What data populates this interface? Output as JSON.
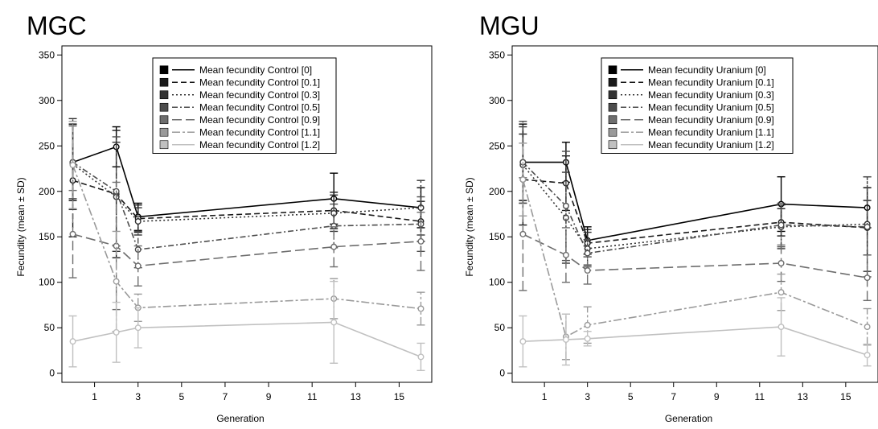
{
  "chart_data": [
    {
      "type": "line",
      "title": "MGC",
      "xlabel": "Generation",
      "ylabel": "Fecundity (mean ± SD)",
      "xlim": [
        -0.5,
        16.5
      ],
      "ylim": [
        -10,
        360
      ],
      "xticks": [
        1,
        3,
        5,
        7,
        9,
        11,
        13,
        15
      ],
      "yticks": [
        0,
        50,
        100,
        150,
        200,
        250,
        300,
        350
      ],
      "grid": false,
      "legend_position": "top-right",
      "x": [
        0,
        2,
        3,
        12,
        16
      ],
      "series": [
        {
          "name": "Mean fecundity Control [0]",
          "color": "#000000",
          "dash": "solid",
          "values": [
            232,
            249,
            172,
            192,
            182
          ],
          "sd": [
            42,
            22,
            15,
            28,
            22
          ]
        },
        {
          "name": "Mean fecundity Control [0.1]",
          "color": "#1a1a1a",
          "dash": "dashed",
          "values": [
            212,
            197,
            170,
            179,
            167
          ],
          "sd": [
            62,
            70,
            15,
            20,
            22
          ]
        },
        {
          "name": "Mean fecundity Control [0.3]",
          "color": "#333333",
          "dash": "dotted",
          "values": [
            230,
            194,
            167,
            176,
            182
          ],
          "sd": [
            50,
            60,
            15,
            20,
            30
          ]
        },
        {
          "name": "Mean fecundity Control [0.5]",
          "color": "#4d4d4d",
          "dash": "dashdot",
          "values": [
            232,
            200,
            136,
            162,
            164
          ],
          "sd": [
            40,
            60,
            20,
            24,
            30
          ]
        },
        {
          "name": "Mean fecundity Control [0.9]",
          "color": "#6e6e6e",
          "dash": "longdash",
          "values": [
            153,
            140,
            118,
            139,
            145
          ],
          "sd": [
            48,
            70,
            22,
            22,
            32
          ]
        },
        {
          "name": "Mean fecundity Control [1.1]",
          "color": "#9a9a9a",
          "dash": "twodash",
          "values": [
            229,
            101,
            72,
            82,
            71
          ],
          "sd": [
            48,
            55,
            15,
            22,
            18
          ]
        },
        {
          "name": "Mean fecundity Control [1.2]",
          "color": "#c0c0c0",
          "dash": "solid",
          "values": [
            35,
            45,
            50,
            56,
            18
          ],
          "sd": [
            28,
            33,
            22,
            45,
            15
          ]
        }
      ]
    },
    {
      "type": "line",
      "title": "MGU",
      "xlabel": "Generation",
      "ylabel": "Fecundity (mean ± SD)",
      "xlim": [
        -0.5,
        16.5
      ],
      "ylim": [
        -10,
        360
      ],
      "xticks": [
        1,
        3,
        5,
        7,
        9,
        11,
        13,
        15
      ],
      "yticks": [
        0,
        50,
        100,
        150,
        200,
        250,
        300,
        350
      ],
      "grid": false,
      "legend_position": "top-right",
      "x": [
        0,
        2,
        3,
        12,
        16
      ],
      "series": [
        {
          "name": "Mean fecundity Uranium [0]",
          "color": "#000000",
          "dash": "solid",
          "values": [
            232,
            232,
            146,
            186,
            182
          ],
          "sd": [
            42,
            22,
            15,
            30,
            22
          ]
        },
        {
          "name": "Mean fecundity Uranium [0.1]",
          "color": "#1a1a1a",
          "dash": "dashed",
          "values": [
            213,
            209,
            143,
            166,
            160
          ],
          "sd": [
            50,
            30,
            15,
            15,
            30
          ]
        },
        {
          "name": "Mean fecundity Uranium [0.3]",
          "color": "#333333",
          "dash": "dotted",
          "values": [
            229,
            171,
            137,
            161,
            164
          ],
          "sd": [
            42,
            50,
            18,
            24,
            52
          ]
        },
        {
          "name": "Mean fecundity Uranium [0.5]",
          "color": "#4d4d4d",
          "dash": "dashdot",
          "values": [
            232,
            184,
            132,
            163,
            161
          ],
          "sd": [
            45,
            60,
            15,
            24,
            55
          ]
        },
        {
          "name": "Mean fecundity Uranium [0.9]",
          "color": "#6e6e6e",
          "dash": "longdash",
          "values": [
            153,
            130,
            113,
            121,
            105
          ],
          "sd": [
            62,
            30,
            15,
            20,
            25
          ]
        },
        {
          "name": "Mean fecundity Uranium [1.1]",
          "color": "#9a9a9a",
          "dash": "twodash",
          "values": [
            213,
            40,
            53,
            89,
            51
          ],
          "sd": [
            40,
            25,
            20,
            20,
            20
          ]
        },
        {
          "name": "Mean fecundity Uranium [1.2]",
          "color": "#c0c0c0",
          "dash": "solid",
          "values": [
            35,
            37,
            38,
            51,
            20
          ],
          "sd": [
            28,
            28,
            8,
            32,
            12
          ]
        }
      ]
    }
  ]
}
